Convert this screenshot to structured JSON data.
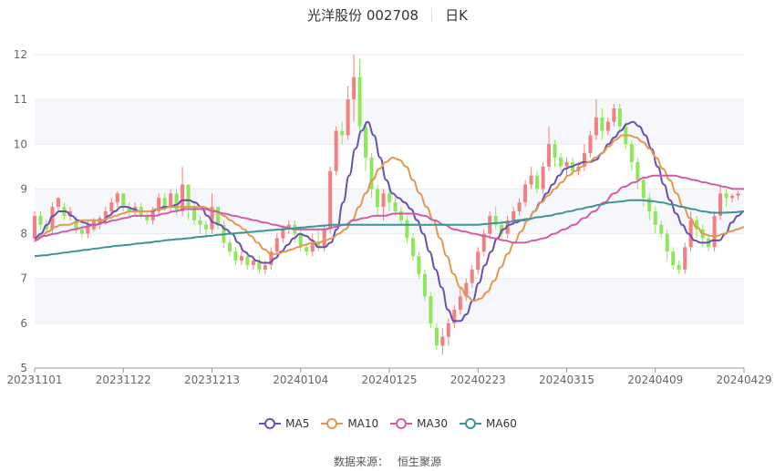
{
  "header": {
    "stock": "光洋股份 002708",
    "period": "日K"
  },
  "source": {
    "label": "数据来源：",
    "value": "恒生聚源"
  },
  "chart_data": {
    "type": "candlestick",
    "title": "光洋股份 002708",
    "period": "日K",
    "ylim": [
      5,
      12
    ],
    "yticks": [
      5,
      6,
      7,
      8,
      9,
      10,
      11,
      12
    ],
    "xtick_labels": [
      "20231101",
      "20231122",
      "20231213",
      "20240104",
      "20240125",
      "20240223",
      "20240315",
      "20240409",
      "20240429"
    ],
    "xtick_index": [
      0,
      15,
      30,
      45,
      60,
      75,
      90,
      105,
      120
    ],
    "num_days": 121,
    "grid": true,
    "legend_position": "bottom",
    "colors": {
      "up": "#f28080",
      "down": "#8ee65a",
      "MA5": "#6a4fb0",
      "MA10": "#e09a50",
      "MA30": "#d15ba8",
      "MA60": "#3c9494",
      "grid": "#e9ebf0",
      "band": "#f6f7fb"
    },
    "candles": [
      {
        "o": 7.9,
        "c": 8.4,
        "h": 8.5,
        "l": 7.8
      },
      {
        "o": 8.4,
        "c": 8.2,
        "h": 8.5,
        "l": 8.1
      },
      {
        "o": 8.2,
        "c": 8.1,
        "h": 8.3,
        "l": 8.0
      },
      {
        "o": 8.1,
        "c": 8.6,
        "h": 8.7,
        "l": 8.0
      },
      {
        "o": 8.6,
        "c": 8.8,
        "h": 8.8,
        "l": 8.5
      },
      {
        "o": 8.6,
        "c": 8.4,
        "h": 8.7,
        "l": 8.3
      },
      {
        "o": 8.4,
        "c": 8.5,
        "h": 8.6,
        "l": 8.3
      },
      {
        "o": 8.3,
        "c": 8.1,
        "h": 8.4,
        "l": 8.0
      },
      {
        "o": 8.1,
        "c": 8.0,
        "h": 8.2,
        "l": 7.9
      },
      {
        "o": 8.0,
        "c": 8.2,
        "h": 8.3,
        "l": 7.9
      },
      {
        "o": 8.1,
        "c": 8.3,
        "h": 8.35,
        "l": 8.05
      },
      {
        "o": 8.2,
        "c": 8.35,
        "h": 8.4,
        "l": 8.1
      },
      {
        "o": 8.3,
        "c": 8.5,
        "h": 8.6,
        "l": 8.2
      },
      {
        "o": 8.5,
        "c": 8.7,
        "h": 8.8,
        "l": 8.4
      },
      {
        "o": 8.7,
        "c": 8.9,
        "h": 8.95,
        "l": 8.6
      },
      {
        "o": 8.9,
        "c": 8.6,
        "h": 8.9,
        "l": 8.5
      },
      {
        "o": 8.6,
        "c": 8.5,
        "h": 8.7,
        "l": 8.4
      },
      {
        "o": 8.5,
        "c": 8.6,
        "h": 8.7,
        "l": 8.4
      },
      {
        "o": 8.6,
        "c": 8.4,
        "h": 8.7,
        "l": 8.35
      },
      {
        "o": 8.4,
        "c": 8.3,
        "h": 8.5,
        "l": 8.2
      },
      {
        "o": 8.3,
        "c": 8.5,
        "h": 8.6,
        "l": 8.2
      },
      {
        "o": 8.5,
        "c": 8.8,
        "h": 8.9,
        "l": 8.4
      },
      {
        "o": 8.8,
        "c": 8.6,
        "h": 8.9,
        "l": 8.5
      },
      {
        "o": 8.6,
        "c": 8.9,
        "h": 9.0,
        "l": 8.5
      },
      {
        "o": 8.9,
        "c": 8.5,
        "h": 9.0,
        "l": 8.4
      },
      {
        "o": 8.5,
        "c": 9.1,
        "h": 9.5,
        "l": 8.4
      },
      {
        "o": 9.1,
        "c": 8.6,
        "h": 9.1,
        "l": 8.3
      },
      {
        "o": 8.6,
        "c": 8.3,
        "h": 8.7,
        "l": 8.2
      },
      {
        "o": 8.3,
        "c": 8.2,
        "h": 8.4,
        "l": 8.0
      },
      {
        "o": 8.2,
        "c": 8.1,
        "h": 8.3,
        "l": 7.9
      },
      {
        "o": 8.1,
        "c": 8.6,
        "h": 8.9,
        "l": 8.0
      },
      {
        "o": 8.6,
        "c": 8.2,
        "h": 8.6,
        "l": 8.1
      },
      {
        "o": 8.2,
        "c": 7.8,
        "h": 8.3,
        "l": 7.7
      },
      {
        "o": 7.8,
        "c": 7.6,
        "h": 7.9,
        "l": 7.5
      },
      {
        "o": 7.6,
        "c": 7.4,
        "h": 7.7,
        "l": 7.3
      },
      {
        "o": 7.4,
        "c": 7.5,
        "h": 7.6,
        "l": 7.3
      },
      {
        "o": 7.5,
        "c": 7.3,
        "h": 7.6,
        "l": 7.2
      },
      {
        "o": 7.3,
        "c": 7.4,
        "h": 7.5,
        "l": 7.2
      },
      {
        "o": 7.4,
        "c": 7.2,
        "h": 7.5,
        "l": 7.1
      },
      {
        "o": 7.2,
        "c": 7.3,
        "h": 7.4,
        "l": 7.1
      },
      {
        "o": 7.3,
        "c": 7.6,
        "h": 7.7,
        "l": 7.2
      },
      {
        "o": 7.6,
        "c": 7.9,
        "h": 8.0,
        "l": 7.5
      },
      {
        "o": 7.9,
        "c": 8.1,
        "h": 8.2,
        "l": 7.8
      },
      {
        "o": 8.1,
        "c": 8.2,
        "h": 8.3,
        "l": 8.0
      },
      {
        "o": 8.2,
        "c": 8.0,
        "h": 8.3,
        "l": 7.8
      },
      {
        "o": 8.0,
        "c": 7.7,
        "h": 8.1,
        "l": 7.6
      },
      {
        "o": 7.7,
        "c": 7.6,
        "h": 7.8,
        "l": 7.5
      },
      {
        "o": 7.6,
        "c": 7.8,
        "h": 8.0,
        "l": 7.5
      },
      {
        "o": 7.8,
        "c": 7.7,
        "h": 8.1,
        "l": 7.6
      },
      {
        "o": 7.7,
        "c": 8.1,
        "h": 8.2,
        "l": 7.6
      },
      {
        "o": 8.1,
        "c": 9.4,
        "h": 9.5,
        "l": 8.0
      },
      {
        "o": 9.4,
        "c": 10.3,
        "h": 10.4,
        "l": 9.3
      },
      {
        "o": 10.3,
        "c": 10.2,
        "h": 10.5,
        "l": 10.0
      },
      {
        "o": 10.2,
        "c": 11.0,
        "h": 11.3,
        "l": 10.1
      },
      {
        "o": 11.0,
        "c": 11.5,
        "h": 12.0,
        "l": 10.5
      },
      {
        "o": 11.5,
        "c": 10.4,
        "h": 11.9,
        "l": 10.2
      },
      {
        "o": 10.4,
        "c": 9.7,
        "h": 10.5,
        "l": 9.4
      },
      {
        "o": 9.7,
        "c": 9.0,
        "h": 9.8,
        "l": 8.8
      },
      {
        "o": 9.0,
        "c": 8.6,
        "h": 9.1,
        "l": 8.4
      },
      {
        "o": 8.6,
        "c": 8.9,
        "h": 9.0,
        "l": 8.3
      },
      {
        "o": 8.9,
        "c": 8.7,
        "h": 9.0,
        "l": 8.5
      },
      {
        "o": 8.7,
        "c": 8.5,
        "h": 8.8,
        "l": 8.4
      },
      {
        "o": 8.5,
        "c": 8.3,
        "h": 8.6,
        "l": 8.2
      },
      {
        "o": 8.3,
        "c": 7.9,
        "h": 8.4,
        "l": 7.8
      },
      {
        "o": 7.9,
        "c": 7.5,
        "h": 8.0,
        "l": 7.4
      },
      {
        "o": 7.5,
        "c": 7.1,
        "h": 7.6,
        "l": 7.0
      },
      {
        "o": 7.1,
        "c": 6.6,
        "h": 7.2,
        "l": 6.5
      },
      {
        "o": 6.6,
        "c": 6.0,
        "h": 6.7,
        "l": 5.9
      },
      {
        "o": 5.9,
        "c": 5.5,
        "h": 6.0,
        "l": 5.4
      },
      {
        "o": 5.5,
        "c": 5.7,
        "h": 5.9,
        "l": 5.3
      },
      {
        "o": 5.7,
        "c": 6.0,
        "h": 6.1,
        "l": 5.5
      },
      {
        "o": 6.0,
        "c": 6.3,
        "h": 6.4,
        "l": 5.9
      },
      {
        "o": 6.3,
        "c": 6.6,
        "h": 6.8,
        "l": 6.2
      },
      {
        "o": 6.6,
        "c": 6.9,
        "h": 7.0,
        "l": 6.5
      },
      {
        "o": 6.9,
        "c": 7.2,
        "h": 7.3,
        "l": 6.8
      },
      {
        "o": 7.2,
        "c": 7.6,
        "h": 7.7,
        "l": 7.1
      },
      {
        "o": 7.6,
        "c": 8.0,
        "h": 8.1,
        "l": 7.5
      },
      {
        "o": 8.0,
        "c": 8.4,
        "h": 8.5,
        "l": 7.9
      },
      {
        "o": 8.4,
        "c": 8.2,
        "h": 8.6,
        "l": 8.1
      },
      {
        "o": 8.2,
        "c": 8.0,
        "h": 8.3,
        "l": 7.9
      },
      {
        "o": 8.0,
        "c": 8.3,
        "h": 8.4,
        "l": 7.9
      },
      {
        "o": 8.3,
        "c": 8.5,
        "h": 8.6,
        "l": 8.2
      },
      {
        "o": 8.5,
        "c": 8.7,
        "h": 8.8,
        "l": 8.4
      },
      {
        "o": 8.7,
        "c": 9.1,
        "h": 9.2,
        "l": 8.6
      },
      {
        "o": 9.1,
        "c": 9.3,
        "h": 9.5,
        "l": 9.0
      },
      {
        "o": 9.3,
        "c": 9.0,
        "h": 9.4,
        "l": 8.9
      },
      {
        "o": 9.0,
        "c": 9.5,
        "h": 9.6,
        "l": 8.9
      },
      {
        "o": 9.5,
        "c": 10.0,
        "h": 10.4,
        "l": 9.4
      },
      {
        "o": 10.0,
        "c": 9.7,
        "h": 10.1,
        "l": 9.5
      },
      {
        "o": 9.7,
        "c": 9.5,
        "h": 9.8,
        "l": 9.4
      },
      {
        "o": 9.5,
        "c": 9.6,
        "h": 9.7,
        "l": 9.3
      },
      {
        "o": 9.6,
        "c": 9.4,
        "h": 9.7,
        "l": 9.3
      },
      {
        "o": 9.4,
        "c": 9.5,
        "h": 9.6,
        "l": 9.3
      },
      {
        "o": 9.5,
        "c": 9.8,
        "h": 10.0,
        "l": 9.4
      },
      {
        "o": 9.8,
        "c": 10.2,
        "h": 10.3,
        "l": 9.7
      },
      {
        "o": 10.2,
        "c": 10.6,
        "h": 11.0,
        "l": 10.1
      },
      {
        "o": 10.6,
        "c": 10.3,
        "h": 10.8,
        "l": 10.1
      },
      {
        "o": 10.3,
        "c": 10.5,
        "h": 10.6,
        "l": 10.2
      },
      {
        "o": 10.5,
        "c": 10.8,
        "h": 10.9,
        "l": 10.4
      },
      {
        "o": 10.8,
        "c": 10.4,
        "h": 10.9,
        "l": 10.3
      },
      {
        "o": 10.4,
        "c": 10.0,
        "h": 10.5,
        "l": 9.9
      },
      {
        "o": 10.0,
        "c": 9.6,
        "h": 10.1,
        "l": 9.4
      },
      {
        "o": 9.6,
        "c": 9.2,
        "h": 9.7,
        "l": 9.0
      },
      {
        "o": 9.2,
        "c": 8.8,
        "h": 9.3,
        "l": 8.6
      },
      {
        "o": 8.8,
        "c": 8.5,
        "h": 8.9,
        "l": 8.3
      },
      {
        "o": 8.5,
        "c": 8.2,
        "h": 8.6,
        "l": 8.0
      },
      {
        "o": 8.2,
        "c": 8.0,
        "h": 8.3,
        "l": 7.9
      },
      {
        "o": 8.0,
        "c": 7.6,
        "h": 8.1,
        "l": 7.4
      },
      {
        "o": 7.6,
        "c": 7.3,
        "h": 7.7,
        "l": 7.2
      },
      {
        "o": 7.3,
        "c": 7.2,
        "h": 7.4,
        "l": 7.1
      },
      {
        "o": 7.2,
        "c": 7.7,
        "h": 7.8,
        "l": 7.1
      },
      {
        "o": 7.7,
        "c": 8.3,
        "h": 8.5,
        "l": 7.6
      },
      {
        "o": 8.3,
        "c": 8.1,
        "h": 8.4,
        "l": 7.9
      },
      {
        "o": 8.1,
        "c": 7.9,
        "h": 8.2,
        "l": 7.7
      },
      {
        "o": 7.9,
        "c": 7.7,
        "h": 8.0,
        "l": 7.6
      },
      {
        "o": 7.7,
        "c": 8.4,
        "h": 8.5,
        "l": 7.6
      },
      {
        "o": 8.4,
        "c": 8.9,
        "h": 9.1,
        "l": 8.3
      },
      {
        "o": 8.9,
        "c": 8.8,
        "h": 9.0,
        "l": 8.6
      },
      {
        "o": 8.8,
        "c": 8.85,
        "h": 8.9,
        "l": 8.7
      },
      {
        "o": 8.85,
        "c": 8.9,
        "h": 8.95,
        "l": 8.75
      }
    ],
    "series": [
      {
        "name": "MA5",
        "values": [
          7.9,
          8.0,
          8.2,
          8.4,
          8.5,
          8.5,
          8.4,
          8.3,
          8.25,
          8.2,
          8.2,
          8.25,
          8.4,
          8.5,
          8.6,
          8.6,
          8.55,
          8.5,
          8.5,
          8.5,
          8.55,
          8.6,
          8.6,
          8.65,
          8.75,
          8.75,
          8.7,
          8.6,
          8.4,
          8.25,
          8.2,
          8.1,
          8.0,
          7.8,
          7.6,
          7.5,
          7.4,
          7.35,
          7.35,
          7.45,
          7.6,
          7.75,
          7.9,
          8.0,
          7.95,
          7.85,
          7.7,
          7.7,
          7.8,
          8.1,
          8.7,
          9.3,
          9.9,
          10.3,
          10.5,
          10.2,
          9.7,
          9.2,
          8.9,
          8.8,
          8.7,
          8.55,
          8.3,
          8.0,
          7.6,
          7.2,
          6.8,
          6.3,
          6.05,
          6.05,
          6.2,
          6.5,
          6.9,
          7.3,
          7.6,
          7.9,
          8.1,
          8.2,
          8.25,
          8.3,
          8.3,
          8.5,
          8.7,
          8.9,
          9.1,
          9.3,
          9.45,
          9.5,
          9.55,
          9.6,
          9.6,
          9.65,
          9.8,
          10.0,
          10.15,
          10.3,
          10.45,
          10.5,
          10.4,
          10.2,
          9.9,
          9.5,
          9.1,
          8.75,
          8.45,
          8.2,
          8.0,
          7.85,
          7.8,
          7.8,
          7.85,
          7.85,
          8.0,
          8.25,
          8.4,
          8.5
        ]
      },
      {
        "name": "MA10",
        "values": [
          7.85,
          7.95,
          8.05,
          8.15,
          8.2,
          8.2,
          8.25,
          8.3,
          8.3,
          8.3,
          8.3,
          8.35,
          8.4,
          8.45,
          8.5,
          8.5,
          8.5,
          8.5,
          8.55,
          8.55,
          8.6,
          8.6,
          8.6,
          8.6,
          8.6,
          8.6,
          8.55,
          8.5,
          8.4,
          8.3,
          8.2,
          8.1,
          7.95,
          7.8,
          7.65,
          7.55,
          7.55,
          7.6,
          7.65,
          7.7,
          7.75,
          7.8,
          7.8,
          7.85,
          7.9,
          8.0,
          8.1,
          8.3,
          8.6,
          8.9,
          9.2,
          9.45,
          9.6,
          9.7,
          9.65,
          9.5,
          9.2,
          8.9,
          8.6,
          8.3,
          7.9,
          7.5,
          7.1,
          6.8,
          6.6,
          6.5,
          6.55,
          6.7,
          6.95,
          7.25,
          7.55,
          7.8,
          8.05,
          8.3,
          8.5,
          8.7,
          8.85,
          9.0,
          9.15,
          9.3,
          9.4,
          9.5,
          9.6,
          9.7,
          9.8,
          9.95,
          10.1,
          10.2,
          10.2,
          10.15,
          10.05,
          9.9,
          9.7,
          9.45,
          9.2,
          8.9,
          8.6,
          8.35,
          8.15,
          8.0,
          7.95,
          7.95,
          8.0,
          8.05,
          8.1,
          8.15
        ]
      },
      {
        "name": "MA30",
        "values": [
          7.85,
          7.95,
          8.0,
          8.05,
          8.1,
          8.15,
          8.2,
          8.25,
          8.3,
          8.35,
          8.4,
          8.4,
          8.4,
          8.45,
          8.5,
          8.55,
          8.55,
          8.55,
          8.5,
          8.45,
          8.4,
          8.35,
          8.3,
          8.25,
          8.2,
          8.15,
          8.1,
          8.1,
          8.1,
          8.1,
          8.15,
          8.2,
          8.3,
          8.35,
          8.4,
          8.4,
          8.45,
          8.45,
          8.45,
          8.4,
          8.3,
          8.2,
          8.1,
          8.05,
          8.0,
          7.95,
          7.9,
          7.85,
          7.8,
          7.8,
          7.85,
          7.9,
          8.0,
          8.1,
          8.2,
          8.35,
          8.5,
          8.7,
          8.9,
          9.05,
          9.15,
          9.25,
          9.3,
          9.3,
          9.3,
          9.25,
          9.2,
          9.15,
          9.1,
          9.05,
          9.0,
          9.0
        ]
      },
      {
        "name": "MA60",
        "values": [
          7.5,
          7.52,
          7.55,
          7.58,
          7.61,
          7.64,
          7.67,
          7.7,
          7.73,
          7.75,
          7.78,
          7.8,
          7.83,
          7.86,
          7.88,
          7.9,
          7.93,
          7.95,
          7.98,
          8.0,
          8.02,
          8.04,
          8.06,
          8.08,
          8.1,
          8.12,
          8.14,
          8.16,
          8.18,
          8.2,
          8.2,
          8.2,
          8.2,
          8.2,
          8.2,
          8.2,
          8.2,
          8.2,
          8.2,
          8.2,
          8.2,
          8.2,
          8.2,
          8.2,
          8.22,
          8.24,
          8.26,
          8.3,
          8.33,
          8.37,
          8.4,
          8.45,
          8.5,
          8.55,
          8.6,
          8.65,
          8.7,
          8.72,
          8.75,
          8.75,
          8.73,
          8.7,
          8.65,
          8.6,
          8.55,
          8.5,
          8.47,
          8.47,
          8.48,
          8.5
        ]
      }
    ]
  }
}
